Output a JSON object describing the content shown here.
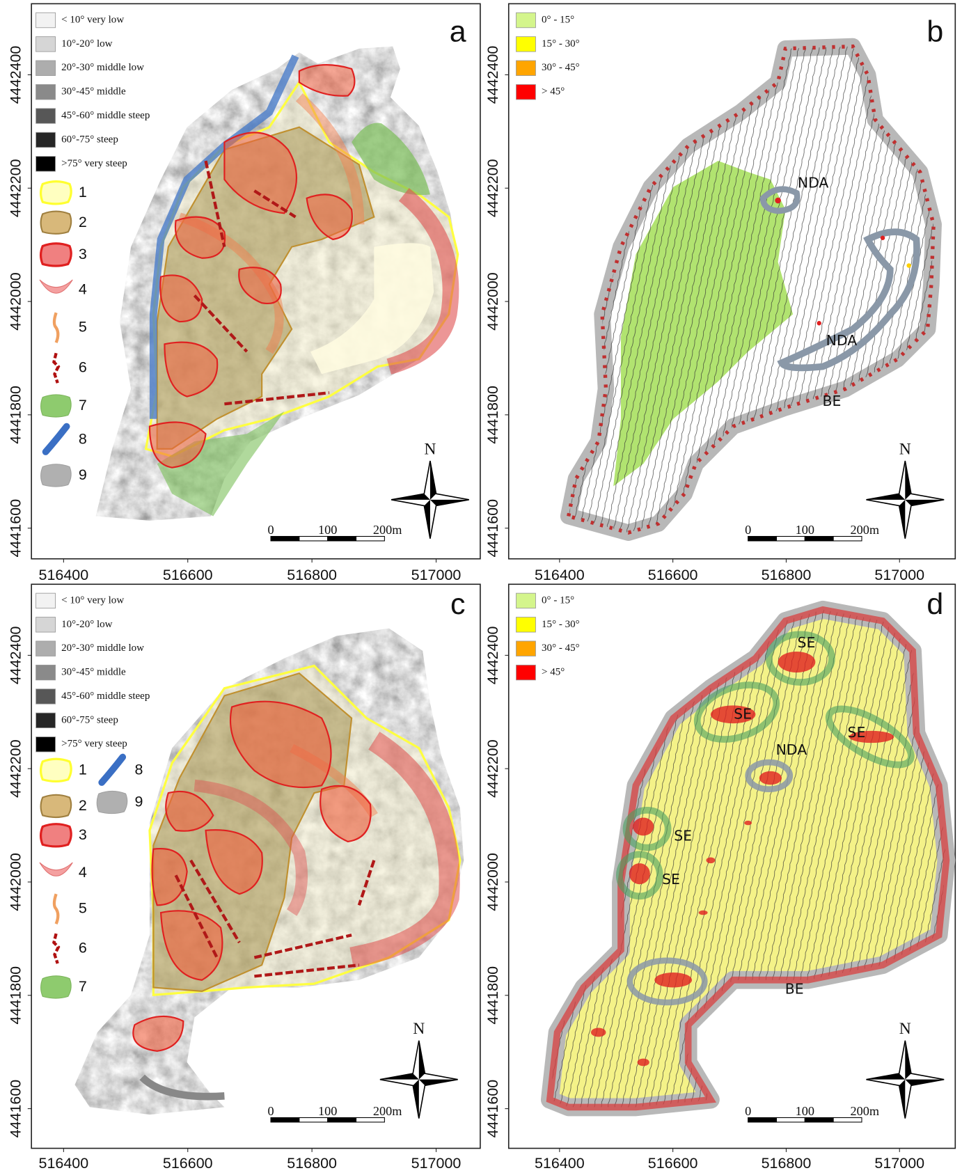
{
  "panels": [
    {
      "label": "a",
      "legend": [
        {
          "label": "< 10° very low",
          "color": "#f2f2f2"
        },
        {
          "label": "10°-20° low",
          "color": "#d6d6d6"
        },
        {
          "label": "20°-30° middle low",
          "color": "#adadad"
        },
        {
          "label": "30°-45° middle",
          "color": "#8a8a8a"
        },
        {
          "label": "45°-60° middle steep",
          "color": "#575757"
        },
        {
          "label": "60°-75° steep",
          "color": "#262626"
        },
        {
          "label": ">75° very steep",
          "color": "#000000"
        }
      ],
      "numbered_legend": [
        "1",
        "2",
        "3",
        "4",
        "5",
        "6",
        "7",
        "8",
        "9"
      ],
      "xticks": [
        516400,
        516600,
        516800,
        517000
      ],
      "yticks": [
        4442400,
        4442200,
        4442000,
        4441800,
        4441600
      ],
      "scale_bar": [
        "0",
        "100",
        "200m"
      ],
      "north": "N"
    },
    {
      "label": "b",
      "legend": [
        {
          "label": "0° - 15°",
          "color": "#d4f58c"
        },
        {
          "label": "15° - 30°",
          "color": "#ffff00"
        },
        {
          "label": "30° - 45°",
          "color": "#ffa500"
        },
        {
          "label": "> 45°",
          "color": "#ff0000"
        }
      ],
      "annotations": [
        "NDA",
        "NDA",
        "BE"
      ],
      "xticks": [
        516400,
        516600,
        516800,
        517000
      ],
      "yticks": [
        4442400,
        4442200,
        4442000,
        4441800,
        4441600
      ],
      "scale_bar": [
        "0",
        "100",
        "200m"
      ],
      "north": "N"
    },
    {
      "label": "c",
      "legend": [
        {
          "label": "< 10° very low",
          "color": "#f2f2f2"
        },
        {
          "label": "10°-20° low",
          "color": "#d6d6d6"
        },
        {
          "label": "20°-30° middle low",
          "color": "#adadad"
        },
        {
          "label": "30°-45° middle",
          "color": "#8a8a8a"
        },
        {
          "label": "45°-60° middle steep",
          "color": "#575757"
        },
        {
          "label": "60°-75° steep",
          "color": "#262626"
        },
        {
          "label": ">75° very steep",
          "color": "#000000"
        }
      ],
      "numbered_legend": [
        "1",
        "2",
        "3",
        "4",
        "5",
        "6",
        "7",
        "8",
        "9"
      ],
      "xticks": [
        516400,
        516600,
        516800,
        517000
      ],
      "yticks": [
        4442400,
        4442200,
        4442000,
        4441800,
        4441600
      ],
      "scale_bar": [
        "0",
        "100",
        "200m"
      ],
      "north": "N"
    },
    {
      "label": "d",
      "legend": [
        {
          "label": "0° - 15°",
          "color": "#d4f58c"
        },
        {
          "label": "15° - 30°",
          "color": "#ffff00"
        },
        {
          "label": "30° - 45°",
          "color": "#ffa500"
        },
        {
          "label": "> 45°",
          "color": "#ff0000"
        }
      ],
      "annotations": [
        "SE",
        "SE",
        "SE",
        "NDA",
        "SE",
        "SE",
        "BE"
      ],
      "xticks": [
        516400,
        516600,
        516800,
        517000
      ],
      "yticks": [
        4442400,
        4442200,
        4442000,
        4441800,
        4441600
      ],
      "scale_bar": [
        "0",
        "100",
        "200m"
      ],
      "north": "N"
    }
  ]
}
